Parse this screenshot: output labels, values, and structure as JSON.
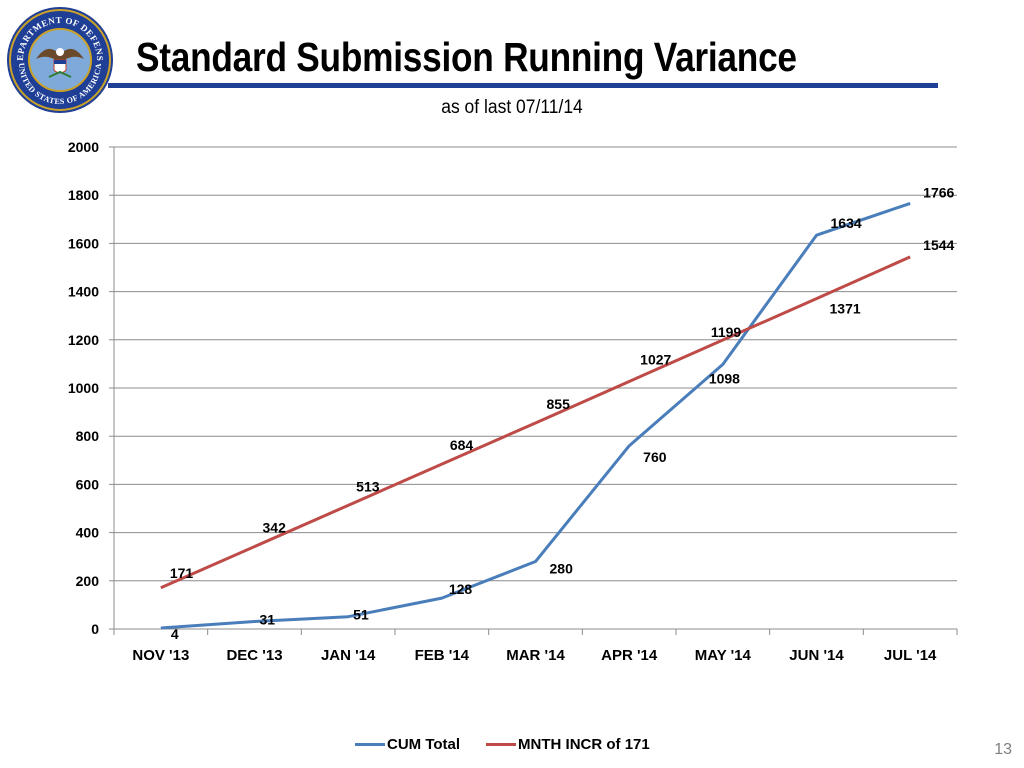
{
  "slide": {
    "title": "Standard Submission Running Variance",
    "subtitle": "as of last 07/11/14",
    "page_number": "13",
    "seal_text_top": "DEPARTMENT OF DEFENSE",
    "seal_text_bottom": "UNITED STATES OF AMERICA",
    "accent_color": "#1f3e96"
  },
  "chart_data": {
    "type": "line",
    "categories": [
      "NOV '13",
      "DEC '13",
      "JAN '14",
      "FEB '14",
      "MAR '14",
      "APR '14",
      "MAY '14",
      "JUN '14",
      "JUL '14"
    ],
    "ylim": [
      0,
      2000
    ],
    "yticks": [
      0,
      200,
      400,
      600,
      800,
      1000,
      1200,
      1400,
      1600,
      1800,
      2000
    ],
    "grid": true,
    "legend_position": "bottom",
    "xlabel": "",
    "ylabel": "",
    "series": [
      {
        "name": "CUM Total",
        "color": "#4a7ebb",
        "values": [
          4,
          31,
          51,
          128,
          280,
          760,
          1098,
          1634,
          1766
        ],
        "labels": [
          "4",
          "31",
          "51",
          "128",
          "280",
          "760",
          "1098",
          "1634",
          "1766"
        ]
      },
      {
        "name": "MNTH INCR of 171",
        "color": "#be4b48",
        "values": [
          171,
          342,
          513,
          684,
          855,
          1027,
          1199,
          1371,
          1544
        ],
        "labels": [
          "171",
          "342",
          "513",
          "684",
          "855",
          "1027",
          "1199",
          "1371",
          "1544"
        ]
      }
    ]
  }
}
